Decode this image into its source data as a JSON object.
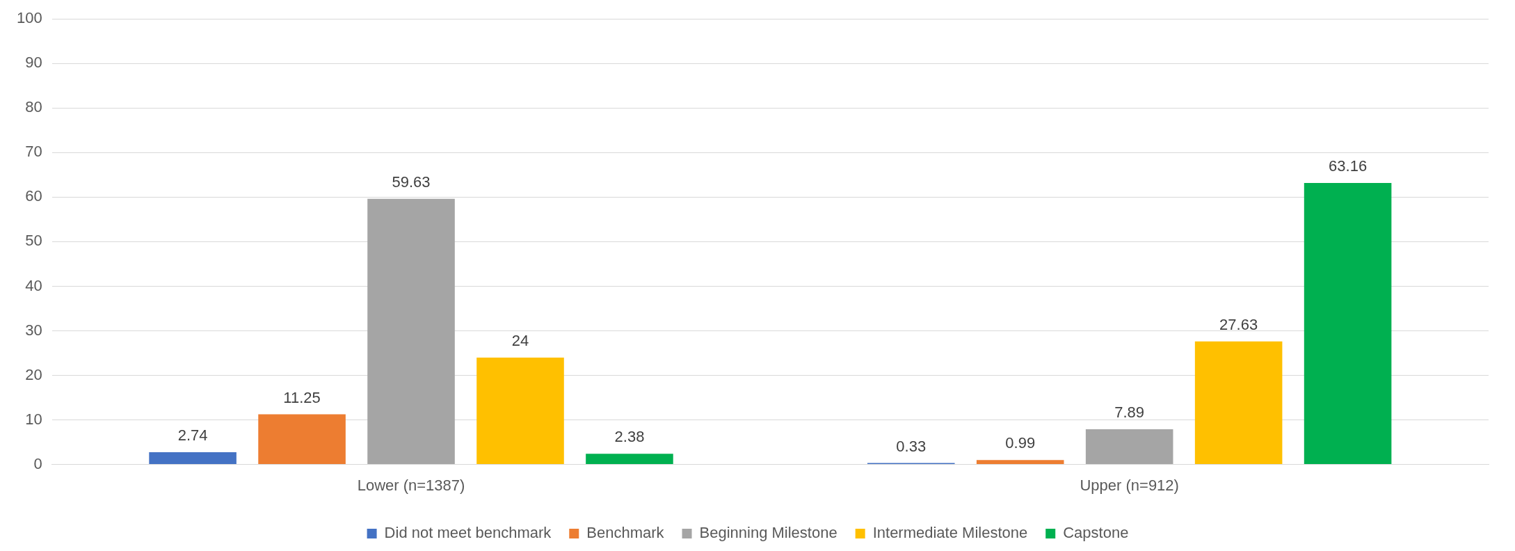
{
  "chart_data": {
    "type": "bar",
    "categories": [
      "Lower (n=1387)",
      "Upper (n=912)"
    ],
    "series": [
      {
        "name": "Did not meet benchmark",
        "color": "#4472c4",
        "values": [
          2.74,
          0.33
        ]
      },
      {
        "name": "Benchmark",
        "color": "#ed7d31",
        "values": [
          11.25,
          0.99
        ]
      },
      {
        "name": "Beginning Milestone",
        "color": "#a5a5a5",
        "values": [
          59.63,
          7.89
        ]
      },
      {
        "name": "Intermediate Milestone",
        "color": "#ffc000",
        "values": [
          24,
          27.63
        ]
      },
      {
        "name": "Capstone",
        "color": "#00b050",
        "values": [
          2.38,
          63.16
        ]
      }
    ],
    "ylim": [
      0,
      100
    ],
    "yticks": [
      0,
      10,
      20,
      30,
      40,
      50,
      60,
      70,
      80,
      90,
      100
    ],
    "grid": "y",
    "legend": "bottom",
    "data_labels": true
  }
}
